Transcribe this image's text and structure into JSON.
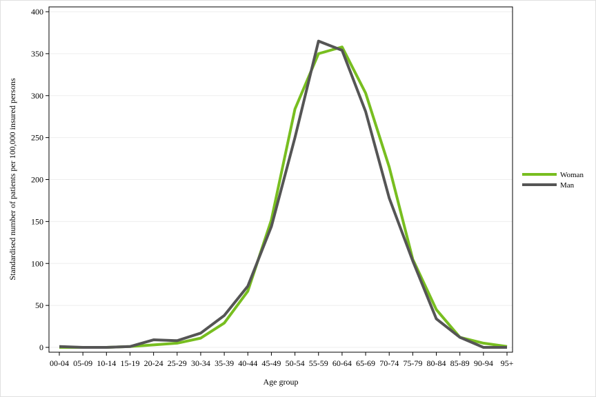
{
  "chart_data": {
    "type": "line",
    "x_label": "Age group",
    "y_label": "Standardised number of patients per 100,000 insured persons",
    "categories": [
      "00-04",
      "05-09",
      "10-14",
      "15-19",
      "20-24",
      "25-29",
      "30-34",
      "35-39",
      "40-44",
      "45-49",
      "50-54",
      "55-59",
      "60-64",
      "65-69",
      "70-74",
      "75-79",
      "80-84",
      "85-89",
      "90-94",
      "95+"
    ],
    "series": [
      {
        "name": "Woman",
        "color": "#78be20",
        "values": [
          0,
          0,
          0,
          1,
          3,
          5,
          11,
          29,
          67,
          152,
          284,
          350,
          358,
          303,
          215,
          105,
          45,
          12,
          5,
          1
        ]
      },
      {
        "name": "Man",
        "color": "#555555",
        "values": [
          1,
          0,
          0,
          1,
          9,
          8,
          17,
          38,
          73,
          144,
          250,
          365,
          354,
          281,
          178,
          103,
          34,
          12,
          0,
          0
        ]
      }
    ],
    "ylim": [
      0,
      400
    ],
    "yticks": [
      0,
      50,
      100,
      150,
      200,
      250,
      300,
      350,
      400
    ],
    "grid": true,
    "legend": "right"
  }
}
